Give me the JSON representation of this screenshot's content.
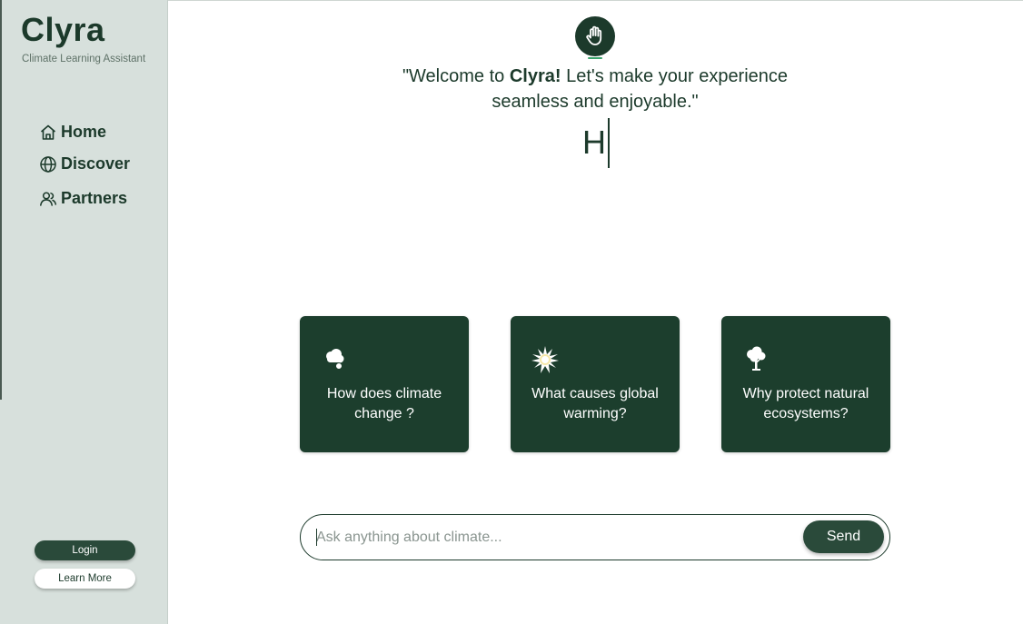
{
  "sidebar": {
    "brand": "Clyra",
    "subtitle": "Climate Learning Assistant",
    "nav": [
      {
        "label": "Home",
        "icon": "home-icon"
      },
      {
        "label": "Discover",
        "icon": "globe-icon"
      },
      {
        "label": "Partners",
        "icon": "users-icon"
      }
    ],
    "login_label": "Login",
    "learn_more_label": "Learn More"
  },
  "hero": {
    "logo_icon": "raised-hand-icon",
    "welcome_prefix": "\"Welcome to ",
    "welcome_brand": "Clyra!",
    "welcome_line1_suffix": " Let's make your experience",
    "welcome_line2": "seamless and enjoyable.\"",
    "typed_text": "H"
  },
  "suggestions": [
    {
      "icon": "cloud-rain-icon",
      "text": "How does climate change ?"
    },
    {
      "icon": "sun-icon",
      "text": "What causes global warming?"
    },
    {
      "icon": "tree-icon",
      "text": "Why protect natural ecosystems?"
    }
  ],
  "chat": {
    "placeholder": "Ask anything about climate...",
    "value": "",
    "send_label": "Send"
  },
  "colors": {
    "primary": "#1c3a2b",
    "sidebar_bg": "#d7e0dc",
    "card_bg": "#1c3e2d",
    "accent": "#3aa36c"
  }
}
